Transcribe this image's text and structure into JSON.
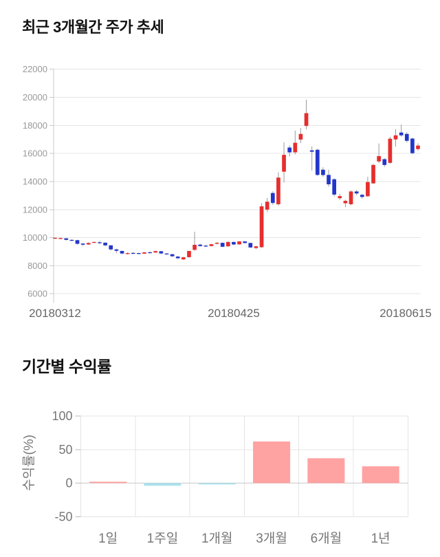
{
  "sections": {
    "price_trend": {
      "title": "최근 3개월간 주가 추세"
    },
    "returns": {
      "title": "기간별 수익률"
    }
  },
  "chart_data": [
    {
      "type": "candlestick",
      "title": "최근 3개월간 주가 추세",
      "ylim": [
        6000,
        22000
      ],
      "y_ticks": [
        22000,
        20000,
        18000,
        16000,
        14000,
        12000,
        10000,
        8000,
        6000
      ],
      "x_tick_labels": [
        "20180312",
        "20180425",
        "20180615"
      ],
      "grid": "horizontal",
      "legend": "none",
      "colors": {
        "up": "#e62e2e",
        "down": "#2336cb",
        "wick": "#999999",
        "grid": "#e4e4e4",
        "axis": "#c9c9c9",
        "y_tick_text": "#999999",
        "x_tick_text": "#666666"
      },
      "candles_ohlc": [
        [
          9930,
          10020,
          9900,
          9990
        ],
        [
          9940,
          10000,
          9890,
          9970
        ],
        [
          9950,
          9970,
          9800,
          9840
        ],
        [
          9840,
          9870,
          9740,
          9780
        ],
        [
          9820,
          9840,
          9510,
          9560
        ],
        [
          9580,
          9620,
          9400,
          9500
        ],
        [
          9510,
          9660,
          9480,
          9620
        ],
        [
          9640,
          9720,
          9600,
          9690
        ],
        [
          9670,
          9770,
          9530,
          9640
        ],
        [
          9640,
          9660,
          9390,
          9450
        ],
        [
          9450,
          9470,
          9090,
          9160
        ],
        [
          9160,
          9220,
          8890,
          9060
        ],
        [
          9050,
          9070,
          8820,
          8870
        ],
        [
          8870,
          8950,
          8790,
          8900
        ],
        [
          8910,
          8980,
          8830,
          8890
        ],
        [
          8900,
          8930,
          8810,
          8860
        ],
        [
          8860,
          8990,
          8830,
          8950
        ],
        [
          8960,
          9010,
          8870,
          8930
        ],
        [
          8940,
          9080,
          8900,
          9040
        ],
        [
          9030,
          9050,
          8840,
          8870
        ],
        [
          8870,
          8900,
          8770,
          8810
        ],
        [
          8820,
          8830,
          8640,
          8670
        ],
        [
          8650,
          8700,
          8480,
          8530
        ],
        [
          8450,
          8630,
          8410,
          8600
        ],
        [
          8610,
          9060,
          8560,
          9050
        ],
        [
          9130,
          10420,
          9060,
          9490
        ],
        [
          9500,
          9560,
          9360,
          9400
        ],
        [
          9430,
          9500,
          9340,
          9380
        ],
        [
          9400,
          9560,
          9380,
          9530
        ],
        [
          9560,
          9680,
          9520,
          9630
        ],
        [
          9630,
          9650,
          9320,
          9350
        ],
        [
          9380,
          9740,
          9350,
          9690
        ],
        [
          9690,
          9720,
          9470,
          9510
        ],
        [
          9520,
          9760,
          9490,
          9730
        ],
        [
          9730,
          9750,
          9580,
          9620
        ],
        [
          9620,
          9640,
          9270,
          9300
        ],
        [
          9260,
          9410,
          9190,
          9380
        ],
        [
          9320,
          12460,
          9260,
          12230
        ],
        [
          12000,
          12830,
          11830,
          12560
        ],
        [
          13180,
          13300,
          12340,
          12470
        ],
        [
          12380,
          14660,
          12280,
          14280
        ],
        [
          14700,
          16800,
          13930,
          15900
        ],
        [
          16420,
          16580,
          15790,
          16080
        ],
        [
          16080,
          17630,
          15930,
          16760
        ],
        [
          16990,
          17810,
          16740,
          17390
        ],
        [
          17960,
          19830,
          17720,
          18870
        ],
        [
          16220,
          16500,
          14780,
          16120
        ],
        [
          16260,
          16350,
          14380,
          14470
        ],
        [
          14840,
          15020,
          14330,
          14460
        ],
        [
          14470,
          14840,
          13630,
          13800
        ],
        [
          14160,
          14230,
          12930,
          13070
        ],
        [
          12810,
          13120,
          12690,
          12960
        ],
        [
          12450,
          12710,
          12180,
          12620
        ],
        [
          12380,
          13360,
          12310,
          13290
        ],
        [
          13290,
          13400,
          13010,
          13150
        ],
        [
          13050,
          13120,
          12790,
          12900
        ],
        [
          12950,
          14340,
          12900,
          13960
        ],
        [
          13870,
          15260,
          13810,
          15180
        ],
        [
          15430,
          16710,
          15310,
          15810
        ],
        [
          15590,
          15670,
          15040,
          15180
        ],
        [
          15330,
          17190,
          15260,
          17050
        ],
        [
          17000,
          17740,
          16480,
          17290
        ],
        [
          17490,
          18050,
          17200,
          17290
        ],
        [
          17390,
          17520,
          16780,
          16900
        ],
        [
          17060,
          17120,
          15940,
          16020
        ],
        [
          16310,
          16720,
          16210,
          16560
        ]
      ]
    },
    {
      "type": "bar",
      "title": "기간별 수익률",
      "categories": [
        "1일",
        "1주일",
        "1개월",
        "3개월",
        "6개월",
        "1년"
      ],
      "values": [
        2,
        -4,
        -2,
        62,
        37,
        25
      ],
      "ylabel": "수익률(%)",
      "y_ticks": [
        100,
        50,
        0,
        -50
      ],
      "ylim": [
        -50,
        100
      ],
      "grid": "both",
      "colors": {
        "positive": "#ffa2a2",
        "negative": "#abe1ed",
        "grid": "#e4e4e4",
        "zero_line": "#c8c8c8",
        "tick_text": "#777777"
      }
    }
  ]
}
